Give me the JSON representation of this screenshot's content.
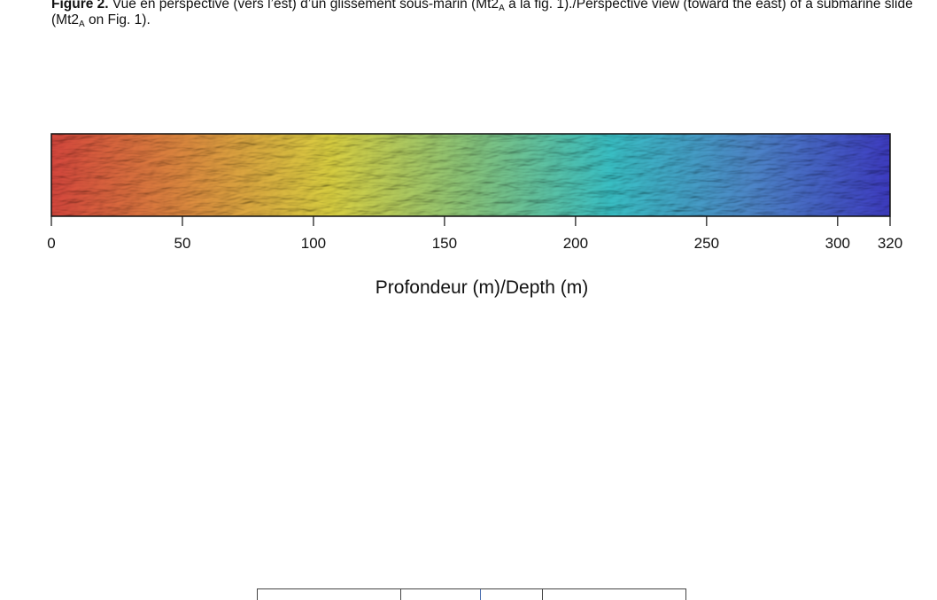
{
  "caption": {
    "label": "Figure 2.",
    "text_fr_1": " Vue en perspective (vers l’est) d’un glissement sous-marin (Mt2",
    "sub1": "A",
    "text_fr_2": " à la fig. 1)./Perspective view (toward the east) of a submarine slide (Mt2",
    "sub2": "A",
    "text_en_end": " on Fig. 1)."
  },
  "colorbar": {
    "colors": [
      "#d6473d",
      "#dc8c3f",
      "#d9cf41",
      "#86c37a",
      "#39bfc4",
      "#4d86c7",
      "#3e3cc2"
    ],
    "ticks": [
      {
        "value": 0,
        "label": "0"
      },
      {
        "value": 50,
        "label": "50"
      },
      {
        "value": 100,
        "label": "100"
      },
      {
        "value": 150,
        "label": "150"
      },
      {
        "value": 200,
        "label": "200"
      },
      {
        "value": 250,
        "label": "250"
      },
      {
        "value": 300,
        "label": "300"
      },
      {
        "value": 320,
        "label": "320"
      }
    ],
    "range": [
      0,
      320
    ],
    "axis_title": "Profondeur (m)/Depth (m)"
  }
}
